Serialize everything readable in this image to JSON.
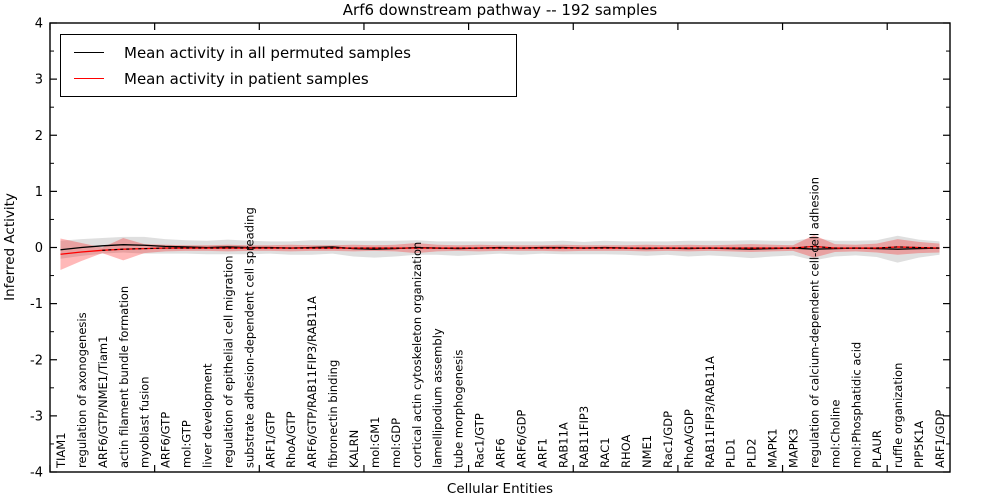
{
  "title": "Arf6 downstream pathway -- 192 samples",
  "xlabel": "Cellular Entities",
  "ylabel": "Inferred Activity",
  "legend": {
    "position": "upper left",
    "items": [
      {
        "label": "Mean activity in all permuted samples",
        "color": "#000000"
      },
      {
        "label": "Mean activity in patient samples",
        "color": "#ff0000"
      }
    ]
  },
  "chart_data": {
    "type": "line",
    "title": "Arf6 downstream pathway -- 192 samples",
    "xlabel": "Cellular Entities",
    "ylabel": "Inferred Activity",
    "ylim": [
      -4,
      4
    ],
    "yticks": [
      "4",
      "3",
      "2",
      "1",
      "0",
      "-1",
      "-2",
      "-3",
      "-4"
    ],
    "ytick_values": [
      4,
      3,
      2,
      1,
      0,
      -1,
      -2,
      -3,
      -4
    ],
    "y_minor_step": 0.5,
    "x_major_tick_every": 5,
    "grid": false,
    "legend_position": "upper left",
    "categories": [
      "TIAM1",
      "regulation of axonogenesis",
      "ARF6/GTP/NME1/Tiam1",
      "actin filament bundle formation",
      "myoblast fusion",
      "ARF6/GTP",
      "mol:GTP",
      "liver development",
      "regulation of epithelial cell migration",
      "substrate adhesion-dependent cell spreading",
      "ARF1/GTP",
      "RhoA/GTP",
      "ARF6/GTP/RAB11FIP3/RAB11A",
      "fibronectin binding",
      "KALRN",
      "mol:GM1",
      "mol:GDP",
      "cortical actin cytoskeleton organization",
      "lamellipodium assembly",
      "tube morphogenesis",
      "Rac1/GTP",
      "ARF6",
      "ARF6/GDP",
      "ARF1",
      "RAB11A",
      "RAB11FIP3",
      "RAC1",
      "RHOA",
      "NME1",
      "Rac1/GDP",
      "RhoA/GDP",
      "RAB11FIP3/RAB11A",
      "PLD1",
      "PLD2",
      "MAPK1",
      "MAPK3",
      "regulation of calcium-dependent cell-cell adhesion",
      "mol:Choline",
      "mol:Phosphatidic acid",
      "PLAUR",
      "ruffle organization",
      "PIP5K1A",
      "ARF1/GDP"
    ],
    "series": [
      {
        "name": "Mean activity in all permuted samples",
        "color": "#000000",
        "band_fill": "#aaaaaa",
        "band_opacity": 0.38,
        "values": [
          -0.04,
          0.0,
          0.03,
          0.05,
          0.04,
          0.02,
          0.01,
          0.0,
          0.01,
          0.0,
          0.0,
          -0.01,
          0.0,
          0.01,
          -0.02,
          -0.03,
          -0.02,
          0.0,
          -0.01,
          -0.02,
          -0.01,
          0.0,
          -0.01,
          0.0,
          0.0,
          -0.01,
          0.0,
          -0.01,
          -0.02,
          -0.01,
          -0.02,
          -0.01,
          -0.02,
          -0.03,
          -0.02,
          -0.01,
          -0.03,
          -0.02,
          -0.01,
          -0.02,
          -0.03,
          -0.02,
          -0.01
        ],
        "band_halfwidth": [
          0.16,
          0.15,
          0.14,
          0.14,
          0.15,
          0.13,
          0.12,
          0.12,
          0.13,
          0.12,
          0.11,
          0.12,
          0.13,
          0.12,
          0.14,
          0.15,
          0.14,
          0.13,
          0.12,
          0.13,
          0.12,
          0.11,
          0.12,
          0.11,
          0.12,
          0.11,
          0.12,
          0.12,
          0.13,
          0.12,
          0.14,
          0.13,
          0.14,
          0.16,
          0.14,
          0.13,
          0.2,
          0.14,
          0.13,
          0.15,
          0.24,
          0.16,
          0.12
        ]
      },
      {
        "name": "Mean activity in patient samples",
        "color": "#ff0000",
        "band_fill": "#ff0000",
        "band_opacity": 0.28,
        "values": [
          -0.12,
          -0.08,
          -0.05,
          -0.03,
          -0.02,
          -0.01,
          -0.01,
          -0.01,
          -0.01,
          -0.01,
          -0.01,
          -0.01,
          -0.01,
          -0.01,
          -0.01,
          -0.01,
          -0.01,
          -0.01,
          -0.01,
          -0.01,
          -0.01,
          -0.01,
          -0.01,
          -0.01,
          -0.01,
          -0.01,
          -0.01,
          -0.01,
          -0.01,
          -0.01,
          -0.01,
          -0.01,
          -0.01,
          -0.01,
          -0.01,
          -0.01,
          0.02,
          -0.01,
          -0.01,
          -0.01,
          0.01,
          0.0,
          -0.01
        ],
        "band_halfwidth": [
          0.28,
          0.16,
          0.05,
          0.2,
          0.08,
          0.06,
          0.05,
          0.05,
          0.06,
          0.05,
          0.05,
          0.06,
          0.05,
          0.05,
          0.06,
          0.05,
          0.06,
          0.09,
          0.06,
          0.05,
          0.06,
          0.05,
          0.05,
          0.05,
          0.06,
          0.05,
          0.05,
          0.05,
          0.06,
          0.05,
          0.06,
          0.05,
          0.06,
          0.07,
          0.06,
          0.05,
          0.2,
          0.07,
          0.06,
          0.08,
          0.14,
          0.1,
          0.08
        ]
      }
    ]
  }
}
